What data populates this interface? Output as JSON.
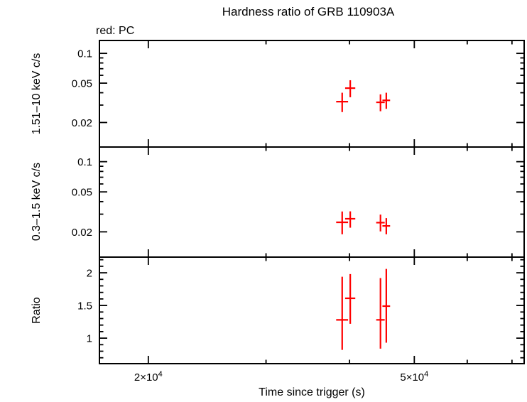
{
  "chart_data": {
    "type": "scatter",
    "title": "Hardness ratio of GRB 110903A",
    "legend_label": "red: PC",
    "series_name": "PC",
    "xlabel": "Time since trigger (s)",
    "colors": {
      "data": "#ff0000",
      "axis": "#000000",
      "background": "#ffffff"
    },
    "xaxis": {
      "scale": "log",
      "xlim": [
        16900,
        73000
      ],
      "major_ticks": [
        {
          "value": 20000,
          "mantissa": "2×10",
          "exponent": "4"
        },
        {
          "value": 50000,
          "mantissa": "5×10",
          "exponent": "4"
        }
      ],
      "minor_ticks": [
        30000,
        40000,
        60000,
        70000
      ]
    },
    "panels": [
      {
        "name": "hard-rate",
        "ylabel": "1.51–10 keV c/s",
        "yscale": "log",
        "ylim": [
          0.0113,
          0.135
        ],
        "major_yticks": [
          {
            "value": 0.1,
            "label": "0.1"
          },
          {
            "value": 0.05,
            "label": "0.05"
          },
          {
            "value": 0.02,
            "label": "0.02"
          }
        ],
        "minor_yticks": [
          0.03,
          0.04,
          0.06,
          0.07,
          0.08,
          0.09
        ],
        "points": [
          {
            "x": 39000,
            "xerr": 800,
            "y": 0.0325,
            "yerr_lo": 0.007,
            "yerr_hi": 0.0075
          },
          {
            "x": 40100,
            "xerr": 700,
            "y": 0.0445,
            "yerr_lo": 0.0085,
            "yerr_hi": 0.009
          },
          {
            "x": 44500,
            "xerr": 650,
            "y": 0.032,
            "yerr_lo": 0.006,
            "yerr_hi": 0.0065
          },
          {
            "x": 45400,
            "xerr": 600,
            "y": 0.0335,
            "yerr_lo": 0.006,
            "yerr_hi": 0.0065
          }
        ]
      },
      {
        "name": "soft-rate",
        "ylabel": "0.3–1.5 keV c/s",
        "yscale": "log",
        "ylim": [
          0.0112,
          0.14
        ],
        "major_yticks": [
          {
            "value": 0.1,
            "label": "0.1"
          },
          {
            "value": 0.05,
            "label": "0.05"
          },
          {
            "value": 0.02,
            "label": "0.02"
          }
        ],
        "minor_yticks": [
          0.03,
          0.04,
          0.06,
          0.07,
          0.08,
          0.09
        ],
        "points": [
          {
            "x": 39000,
            "xerr": 800,
            "y": 0.0249,
            "yerr_lo": 0.006,
            "yerr_hi": 0.007
          },
          {
            "x": 40100,
            "xerr": 700,
            "y": 0.027,
            "yerr_lo": 0.005,
            "yerr_hi": 0.005
          },
          {
            "x": 44500,
            "xerr": 650,
            "y": 0.0247,
            "yerr_lo": 0.0045,
            "yerr_hi": 0.005
          },
          {
            "x": 45400,
            "xerr": 600,
            "y": 0.0229,
            "yerr_lo": 0.004,
            "yerr_hi": 0.0045
          }
        ]
      },
      {
        "name": "ratio",
        "ylabel": "Ratio",
        "yscale": "linear",
        "ylim": [
          0.61,
          2.24
        ],
        "major_yticks": [
          {
            "value": 2,
            "label": "2"
          },
          {
            "value": 1.5,
            "label": "1.5"
          },
          {
            "value": 1,
            "label": "1"
          }
        ],
        "minor_yticks": [
          0.7,
          0.8,
          0.9,
          1.1,
          1.2,
          1.3,
          1.4,
          1.6,
          1.7,
          1.8,
          1.9,
          2.1,
          2.2
        ],
        "points": [
          {
            "x": 39000,
            "xerr": 800,
            "y": 1.28,
            "yerr_lo": 0.46,
            "yerr_hi": 0.66
          },
          {
            "x": 40100,
            "xerr": 700,
            "y": 1.61,
            "yerr_lo": 0.39,
            "yerr_hi": 0.37
          },
          {
            "x": 44500,
            "xerr": 650,
            "y": 1.28,
            "yerr_lo": 0.44,
            "yerr_hi": 0.64
          },
          {
            "x": 45400,
            "xerr": 600,
            "y": 1.49,
            "yerr_lo": 0.56,
            "yerr_hi": 0.57
          }
        ]
      }
    ]
  }
}
